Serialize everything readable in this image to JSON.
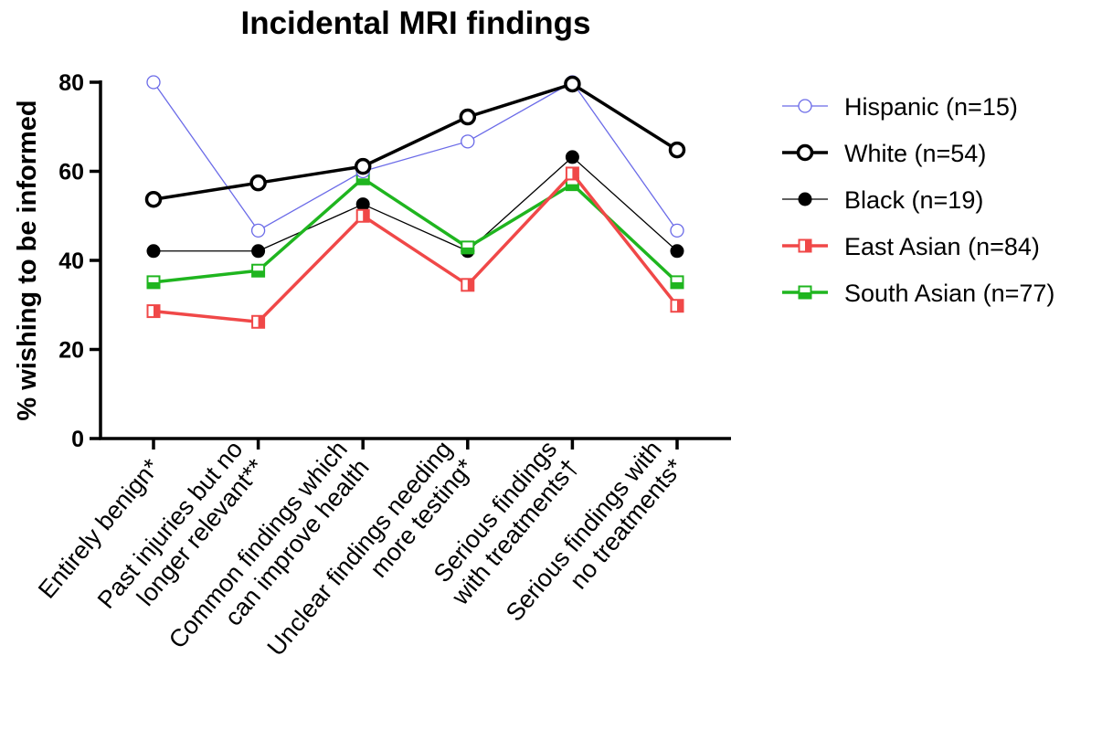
{
  "chart_data": {
    "type": "line",
    "title": "Incidental MRI findings",
    "ylabel": "% wishing to be informed",
    "xlabel": "",
    "ylim": [
      0,
      80
    ],
    "yticks": [
      0,
      20,
      40,
      60,
      80
    ],
    "grid": false,
    "legend_position": "right",
    "categories": [
      [
        "Entirely benign*"
      ],
      [
        "Past injuries but no",
        "longer relevant**"
      ],
      [
        "Common findings which",
        "can improve health"
      ],
      [
        "Unclear findings needing",
        "more testing*"
      ],
      [
        "Serious findings",
        "with treatments†"
      ],
      [
        "Serious findings with",
        "no treatments*"
      ]
    ],
    "series": [
      {
        "name": "Hispanic (n=15)",
        "values": [
          80,
          46.7,
          60,
          66.7,
          80,
          46.7
        ],
        "color": "#6B6BE8",
        "marker": "open-circle",
        "line_width": "thin"
      },
      {
        "name": "White (n=54)",
        "values": [
          53.7,
          57.4,
          61.1,
          72.2,
          79.6,
          64.8
        ],
        "color": "#000000",
        "marker": "open-circle",
        "line_width": "thick"
      },
      {
        "name": "Black (n=19)",
        "values": [
          42.1,
          42.1,
          52.6,
          42.1,
          63.2,
          42.1
        ],
        "color": "#000000",
        "marker": "filled-circle",
        "line_width": "thin"
      },
      {
        "name": "East Asian (n=84)",
        "values": [
          28.6,
          26.2,
          50,
          34.5,
          59.5,
          29.8
        ],
        "color": "#F04848",
        "marker": "half-filled-square",
        "line_width": "thick"
      },
      {
        "name": "South Asian (n=77)",
        "values": [
          35.1,
          37.7,
          58.4,
          42.9,
          57.1,
          35.1
        ],
        "color": "#1FB51F",
        "marker": "half-filled-square",
        "line_width": "thick"
      }
    ]
  }
}
